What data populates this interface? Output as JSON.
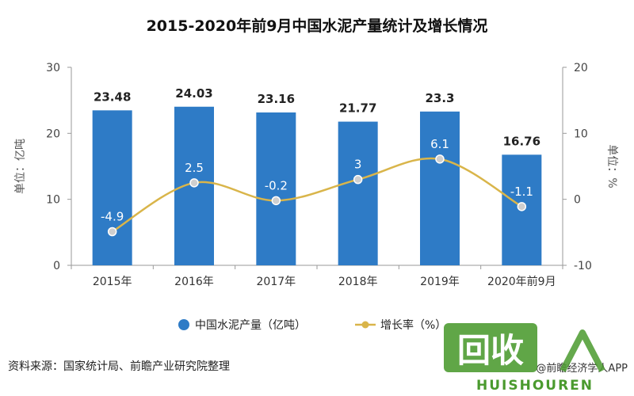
{
  "chart_data": {
    "type": "bar",
    "title": "2015-2020年前9月中国水泥产量统计及增长情况",
    "categories": [
      "2015年",
      "2016年",
      "2017年",
      "2018年",
      "2019年",
      "2020年前9月"
    ],
    "series": [
      {
        "name": "中国水泥产量（亿吨）",
        "type": "bar",
        "axis": "left",
        "values": [
          23.48,
          24.03,
          23.16,
          21.77,
          23.3,
          16.76
        ],
        "value_labels": [
          "23.48",
          "24.03",
          "23.16",
          "21.77",
          "23.3",
          "16.76"
        ],
        "color": "#2e7bc6"
      },
      {
        "name": "增长率（%）",
        "type": "line",
        "axis": "right",
        "values": [
          -4.9,
          2.5,
          -0.2,
          3,
          6.1,
          -1.1
        ],
        "value_labels": [
          "-4.9",
          "2.5",
          "-0.2",
          "3",
          "6.1",
          "-1.1"
        ],
        "color": "#d9b54a"
      }
    ],
    "ylabel": "单位：亿吨",
    "y2label": "单位：%",
    "ylim": [
      0,
      30
    ],
    "y2lim": [
      -10,
      20
    ],
    "yticks": [
      "0",
      "10",
      "20",
      "30"
    ],
    "y2ticks": [
      "-10",
      "0",
      "10",
      "20"
    ],
    "legend": {
      "position": "bottom",
      "items": [
        "中国水泥产量（亿吨）",
        "增长率（%）"
      ]
    },
    "grid": false
  },
  "source": "资料来源：国家统计局、前瞻产业研究院整理",
  "credit": "@前瞻经济学人APP",
  "watermark": {
    "cn": "回收",
    "en": "HUISHOUREN"
  },
  "colors": {
    "bar": "#2e7bc6",
    "line": "#d9b54a",
    "logo_green": "#4a9a2e"
  }
}
